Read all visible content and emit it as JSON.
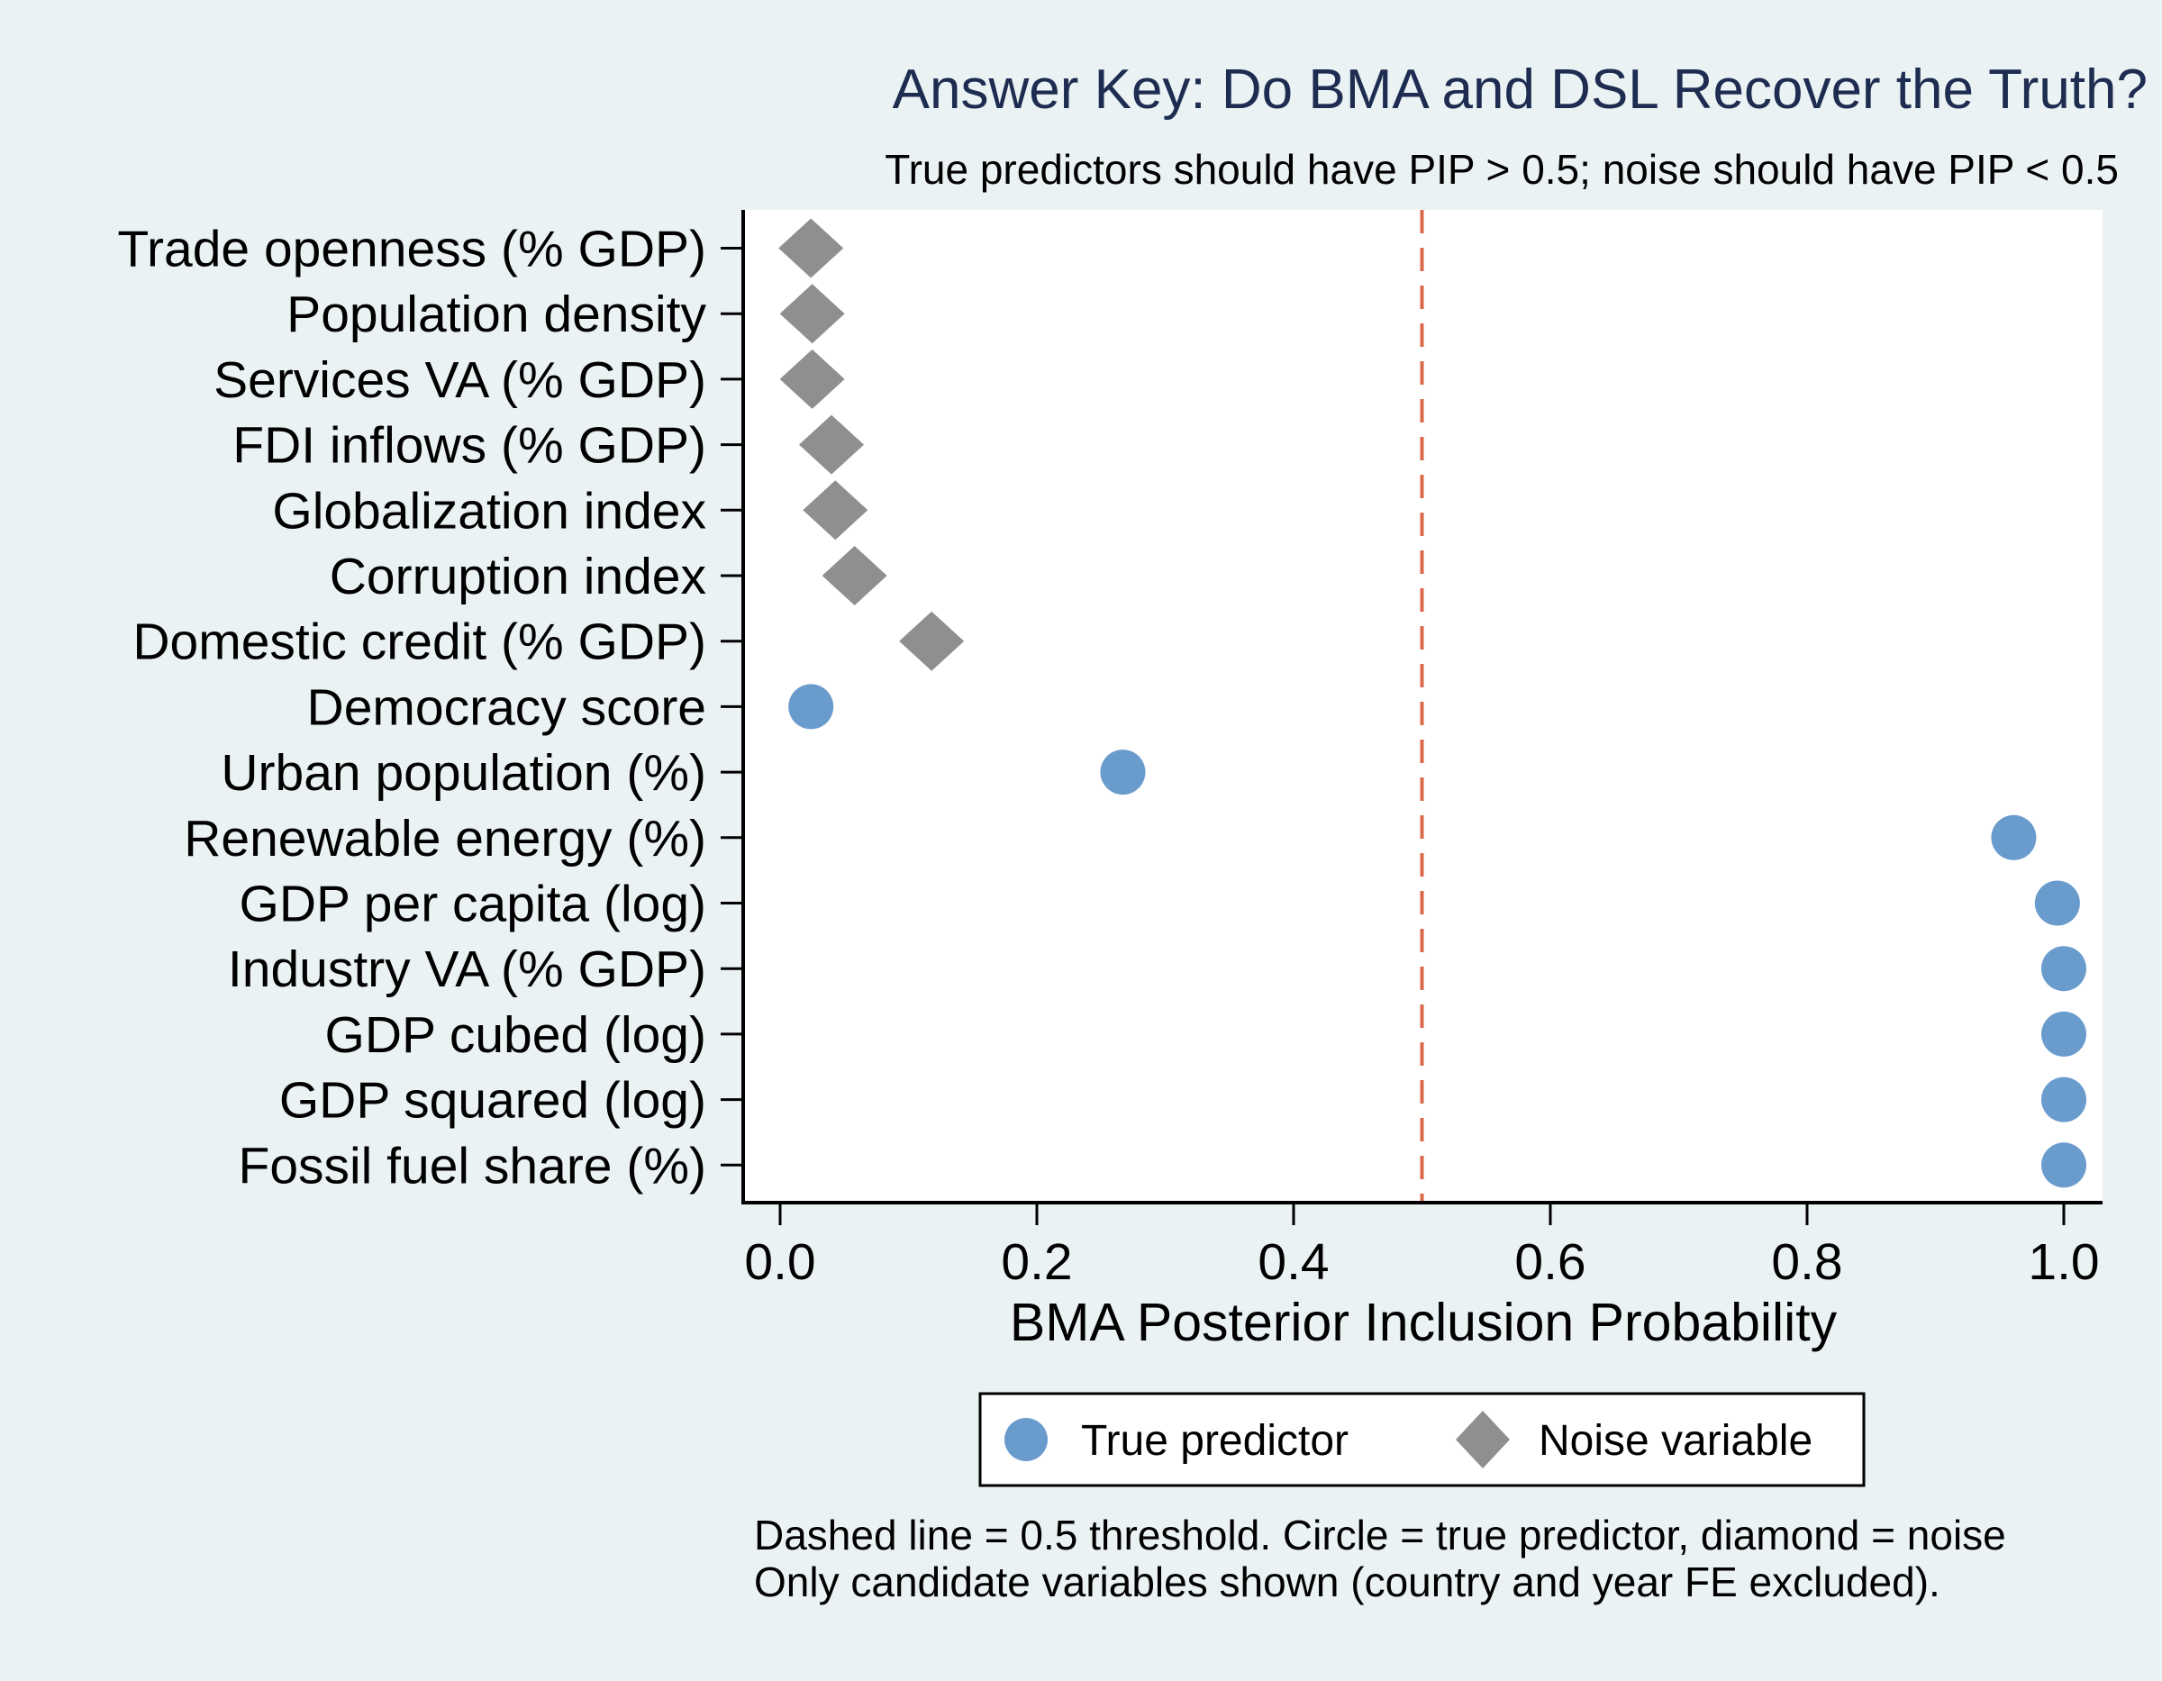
{
  "chart_data": {
    "type": "scatter",
    "title": "Answer Key: Do BMA and DSL Recover the Truth?",
    "subtitle": "True predictors should have PIP > 0.5; noise should have PIP < 0.5",
    "xlabel": "BMA Posterior Inclusion Probability",
    "ylabel": "",
    "xlim": [
      -0.03,
      1.03
    ],
    "xticks": [
      "0.0",
      "0.2",
      "0.4",
      "0.6",
      "0.8",
      "1.0"
    ],
    "threshold": 0.5,
    "grid": false,
    "legend_position": "bottom",
    "colors": {
      "true": "#6a9bcd",
      "noise": "#8f8f8f",
      "threshold": "#d9694a",
      "title": "#1d2c50",
      "background": "#eaf2f3"
    },
    "legend": [
      {
        "label": "True predictor",
        "marker": "circle"
      },
      {
        "label": "Noise variable",
        "marker": "diamond"
      }
    ],
    "points": [
      {
        "label": "Trade openness (% GDP)",
        "value": 0.024,
        "type": "noise"
      },
      {
        "label": "Population density",
        "value": 0.025,
        "type": "noise"
      },
      {
        "label": "Services VA (% GDP)",
        "value": 0.025,
        "type": "noise"
      },
      {
        "label": "FDI inflows (% GDP)",
        "value": 0.04,
        "type": "noise"
      },
      {
        "label": "Globalization index",
        "value": 0.043,
        "type": "noise"
      },
      {
        "label": "Corruption index",
        "value": 0.058,
        "type": "noise"
      },
      {
        "label": "Domestic credit (% GDP)",
        "value": 0.118,
        "type": "noise"
      },
      {
        "label": "Democracy score",
        "value": 0.024,
        "type": "true"
      },
      {
        "label": "Urban population (%)",
        "value": 0.267,
        "type": "true"
      },
      {
        "label": "Renewable energy (%)",
        "value": 0.961,
        "type": "true"
      },
      {
        "label": "GDP per capita (log)",
        "value": 0.995,
        "type": "true"
      },
      {
        "label": "Industry VA (% GDP)",
        "value": 1.0,
        "type": "true"
      },
      {
        "label": "GDP cubed (log)",
        "value": 1.0,
        "type": "true"
      },
      {
        "label": "GDP squared (log)",
        "value": 1.0,
        "type": "true"
      },
      {
        "label": "Fossil fuel share (%)",
        "value": 1.0,
        "type": "true"
      }
    ],
    "notes": [
      "Dashed line = 0.5 threshold. Circle = true predictor, diamond = noise",
      "Only candidate variables shown (country and year FE excluded)."
    ]
  }
}
